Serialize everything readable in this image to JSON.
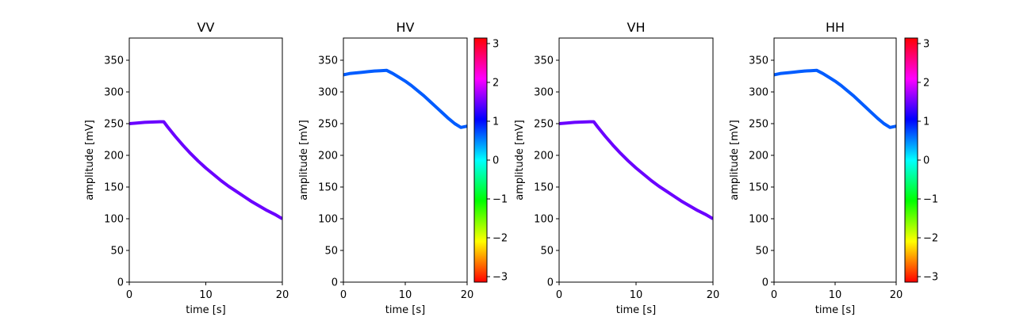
{
  "chart_data": [
    {
      "type": "line",
      "title": "VV",
      "xlabel": "time [s]",
      "ylabel": "amplitude [mV]",
      "xlim": [
        0,
        20
      ],
      "ylim": [
        0,
        385
      ],
      "xticks": [
        0,
        10,
        20
      ],
      "yticks": [
        0,
        50,
        100,
        150,
        200,
        250,
        300,
        350
      ],
      "line_color": "#6a00ff",
      "series": [
        {
          "name": "VV",
          "x": [
            0,
            1,
            2,
            3,
            4,
            4.5,
            5,
            6,
            7,
            8,
            9,
            10,
            11,
            12,
            13,
            14,
            15,
            16,
            17,
            18,
            19,
            20
          ],
          "y": [
            250,
            251,
            252,
            252.5,
            253,
            253,
            245,
            230,
            216,
            203,
            191,
            180,
            170,
            160,
            151,
            143,
            135,
            127,
            120,
            113,
            107,
            100
          ]
        }
      ]
    },
    {
      "type": "line",
      "title": "HV",
      "xlabel": "time [s]",
      "ylabel": "amplitude [mV]",
      "xlim": [
        0,
        20
      ],
      "ylim": [
        0,
        385
      ],
      "xticks": [
        0,
        10,
        20
      ],
      "yticks": [
        0,
        50,
        100,
        150,
        200,
        250,
        300,
        350
      ],
      "line_color": "#005cff",
      "series": [
        {
          "name": "HV",
          "x": [
            0,
            1,
            2,
            3,
            4,
            5,
            6,
            7,
            8,
            9,
            10,
            11,
            12,
            13,
            14,
            15,
            16,
            17,
            18,
            19,
            20
          ],
          "y": [
            327,
            329,
            330,
            331,
            332,
            333,
            333.5,
            334,
            329,
            323,
            317,
            310,
            302,
            294,
            285,
            276,
            267,
            258,
            250,
            244,
            246
          ]
        }
      ],
      "colorbar": {
        "ticks": [
          3,
          2,
          1,
          0,
          -1,
          -2,
          -3
        ],
        "tick_labels": [
          "3",
          "2",
          "1",
          "0",
          "−1",
          "−2",
          "−3"
        ],
        "range": [
          -3.1416,
          3.1416
        ]
      }
    },
    {
      "type": "line",
      "title": "VH",
      "xlabel": "time [s]",
      "ylabel": "amplitude [mV]",
      "xlim": [
        0,
        20
      ],
      "ylim": [
        0,
        385
      ],
      "xticks": [
        0,
        10,
        20
      ],
      "yticks": [
        0,
        50,
        100,
        150,
        200,
        250,
        300,
        350
      ],
      "line_color": "#6a00ff",
      "series": [
        {
          "name": "VH",
          "x": [
            0,
            1,
            2,
            3,
            4,
            4.5,
            5,
            6,
            7,
            8,
            9,
            10,
            11,
            12,
            13,
            14,
            15,
            16,
            17,
            18,
            19,
            20
          ],
          "y": [
            250,
            251,
            252,
            252.5,
            253,
            253,
            245,
            230,
            216,
            203,
            191,
            180,
            170,
            160,
            151,
            143,
            135,
            127,
            120,
            113,
            107,
            100
          ]
        }
      ]
    },
    {
      "type": "line",
      "title": "HH",
      "xlabel": "time [s]",
      "ylabel": "amplitude [mV]",
      "xlim": [
        0,
        20
      ],
      "ylim": [
        0,
        385
      ],
      "xticks": [
        0,
        10,
        20
      ],
      "yticks": [
        0,
        50,
        100,
        150,
        200,
        250,
        300,
        350
      ],
      "line_color": "#005cff",
      "series": [
        {
          "name": "HH",
          "x": [
            0,
            1,
            2,
            3,
            4,
            5,
            6,
            7,
            8,
            9,
            10,
            11,
            12,
            13,
            14,
            15,
            16,
            17,
            18,
            19,
            20
          ],
          "y": [
            327,
            329,
            330,
            331,
            332,
            333,
            333.5,
            334,
            329,
            323,
            317,
            310,
            302,
            294,
            285,
            276,
            267,
            258,
            250,
            244,
            246
          ]
        }
      ],
      "colorbar": {
        "ticks": [
          3,
          2,
          1,
          0,
          -1,
          -2,
          -3
        ],
        "tick_labels": [
          "3",
          "2",
          "1",
          "0",
          "−1",
          "−2",
          "−3"
        ],
        "range": [
          -3.1416,
          3.1416
        ]
      }
    }
  ]
}
